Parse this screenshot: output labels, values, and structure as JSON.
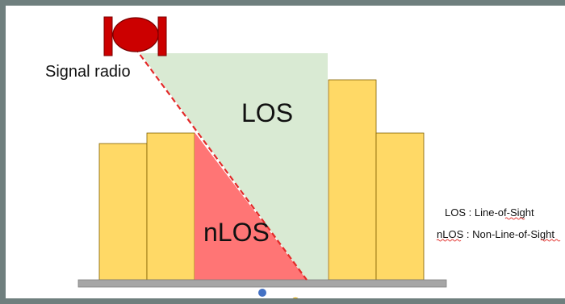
{
  "diagram": {
    "radio_label": "Signal radio",
    "los_label": "LOS",
    "nlos_label": "nLOS",
    "legend": [
      {
        "abbr": "LOS",
        "sep": " : ",
        "text": "Line-of-Sight"
      },
      {
        "abbr": "nLOS",
        "sep": " : ",
        "text": "Non-Line-of-Sight"
      }
    ]
  },
  "colors": {
    "frame": "#6f7f7e",
    "building_fill": "#ffd966",
    "building_stroke": "#7f6000",
    "los_zone": "#d9ead3",
    "nlos_zone": "#ff7575",
    "signal_line": "#e32a2a",
    "radio_body": "#cc0000",
    "ground": "#a6a6a6",
    "dot_blue": "#4472c4",
    "dot_purple": "#7030a0",
    "dot_yellow": "#ffc000"
  }
}
